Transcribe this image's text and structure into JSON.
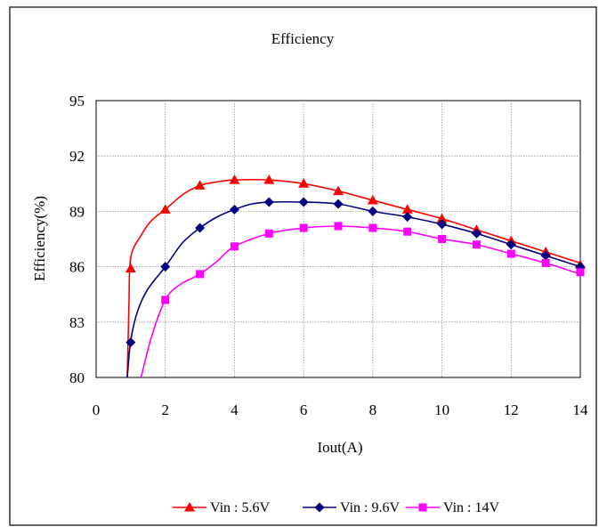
{
  "chart_data": {
    "type": "line",
    "title": "Efficiency",
    "xlabel": "Iout(A)",
    "ylabel": "Efficiency(%)",
    "xlim": [
      0,
      14
    ],
    "ylim": [
      80,
      95
    ],
    "xticks": [
      0,
      2,
      4,
      6,
      8,
      10,
      12,
      14
    ],
    "yticks": [
      80,
      83,
      86,
      89,
      92,
      95
    ],
    "grid": true,
    "legend_position": "bottom",
    "series": [
      {
        "name": "Vin : 5.6V",
        "color": "#ff0000",
        "marker": "triangle",
        "x": [
          1,
          2,
          3,
          4,
          5,
          6,
          7,
          8,
          9,
          10,
          11,
          12,
          13,
          14
        ],
        "y": [
          85.9,
          89.1,
          90.4,
          90.7,
          90.7,
          90.5,
          90.1,
          89.6,
          89.1,
          88.6,
          88.0,
          87.4,
          86.8,
          86.1
        ],
        "curve_x": [
          0.9,
          0.95,
          1,
          1.3,
          1.6,
          2,
          2.5,
          3,
          3.5,
          4,
          5,
          6,
          7,
          8,
          9,
          10,
          11,
          12,
          13,
          14
        ],
        "curve_y": [
          80,
          84.0,
          86.5,
          87.7,
          88.5,
          89.1,
          89.9,
          90.4,
          90.6,
          90.7,
          90.7,
          90.5,
          90.1,
          89.6,
          89.1,
          88.6,
          88.0,
          87.4,
          86.8,
          86.2
        ]
      },
      {
        "name": "Vin : 9.6V",
        "color": "#000080",
        "marker": "diamond",
        "x": [
          1,
          2,
          3,
          4,
          5,
          6,
          7,
          8,
          9,
          10,
          11,
          12,
          13,
          14
        ],
        "y": [
          81.9,
          86.0,
          88.1,
          89.1,
          89.5,
          89.5,
          89.4,
          89.0,
          88.7,
          88.3,
          87.8,
          87.2,
          86.6,
          86.0
        ],
        "curve_x": [
          0.9,
          1,
          1.2,
          1.5,
          2,
          2.5,
          3,
          3.5,
          4,
          4.5,
          5,
          6,
          7,
          8,
          9,
          10,
          11,
          12,
          13,
          14
        ],
        "curve_y": [
          80,
          82.0,
          83.6,
          84.8,
          86.0,
          87.3,
          88.1,
          88.7,
          89.1,
          89.4,
          89.5,
          89.5,
          89.4,
          89.0,
          88.7,
          88.3,
          87.8,
          87.2,
          86.6,
          86.0
        ]
      },
      {
        "name": "Vin : 14V",
        "color": "#ff00ff",
        "marker": "square",
        "x": [
          2,
          3,
          4,
          5,
          6,
          7,
          8,
          9,
          10,
          11,
          12,
          13,
          14
        ],
        "y": [
          84.2,
          85.6,
          87.1,
          87.8,
          88.1,
          88.2,
          88.1,
          87.9,
          87.5,
          87.2,
          86.7,
          86.2,
          85.7
        ],
        "curve_x": [
          1.3,
          1.6,
          2,
          2.4,
          3,
          3.5,
          4,
          5,
          6,
          7,
          8,
          9,
          10,
          11,
          12,
          13,
          14
        ],
        "curve_y": [
          80,
          82.2,
          84.2,
          85.0,
          85.6,
          86.3,
          87.1,
          87.8,
          88.1,
          88.2,
          88.1,
          87.9,
          87.5,
          87.2,
          86.7,
          86.2,
          85.6
        ]
      }
    ]
  }
}
